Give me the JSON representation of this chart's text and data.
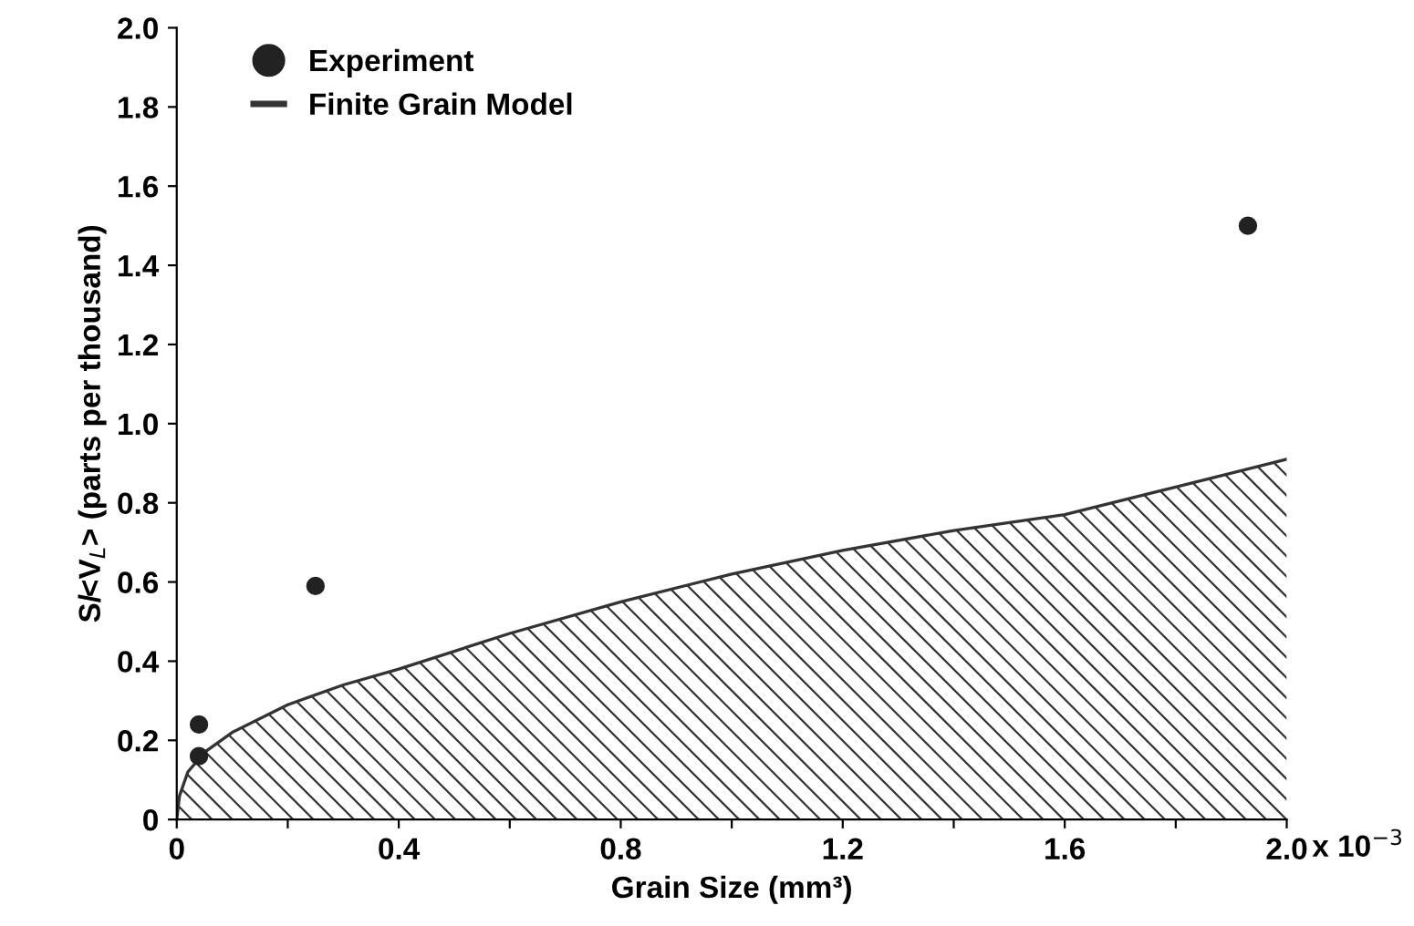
{
  "chart_data": {
    "type": "scatter",
    "xlabel": "Grain Size (mm³)",
    "ylabel": "S/<V$_{L}$> (parts per thousand)",
    "annotations": [
      "x 10$^{−3}$"
    ],
    "xlim": [
      0,
      2.0
    ],
    "ylim": [
      0,
      2.0
    ],
    "xticks": [
      0,
      {
        "value": 0.2,
        "label": null
      },
      0.4,
      {
        "value": 0.6,
        "label": null
      },
      0.8,
      {
        "value": 1.0,
        "label": null
      },
      1.2,
      {
        "value": 1.4,
        "label": null
      },
      1.6,
      {
        "value": 1.8,
        "label": null
      },
      {
        "value": 2.0,
        "label": "2.0"
      }
    ],
    "yticks": [
      0,
      0.2,
      0.4,
      0.6,
      0.8,
      {
        "value": 1.0,
        "label": "1.0"
      },
      1.2,
      1.4,
      1.6,
      1.8,
      {
        "value": 2.0,
        "label": "2.0"
      }
    ],
    "legend": "top left",
    "grid": false,
    "series": [
      {
        "name": "Experiment",
        "color": "#222222",
        "marker": "circle",
        "x": [
          0.04,
          0.04,
          0.25,
          1.93
        ],
        "values": [
          0.24,
          0.16,
          0.59,
          1.5
        ]
      },
      {
        "name": "Finite Grain Model",
        "type": "area",
        "color": "#333333",
        "x": [
          0,
          0.005,
          0.02,
          0.05,
          0.1,
          0.2,
          0.3,
          0.4,
          0.6,
          0.8,
          1.0,
          1.2,
          1.4,
          1.6,
          1.8,
          2.0
        ],
        "values": [
          0,
          0.06,
          0.12,
          0.17,
          0.22,
          0.29,
          0.34,
          0.38,
          0.47,
          0.55,
          0.62,
          0.68,
          0.73,
          0.77,
          0.84,
          0.91
        ]
      }
    ]
  }
}
